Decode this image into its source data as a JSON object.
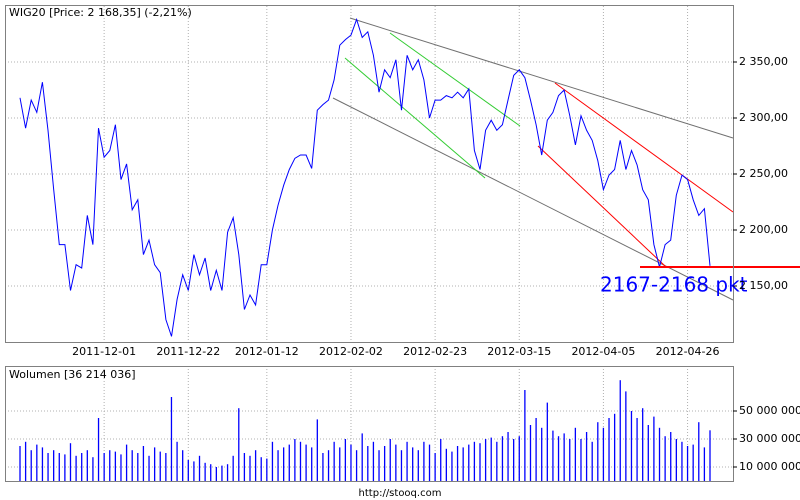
{
  "chart_data": [
    {
      "type": "line",
      "title": "WIG20 [Price: 2 168,35] (-2,21%)",
      "color": "#0000ff",
      "grid": true,
      "categories": [
        null,
        null,
        null,
        null,
        null,
        null,
        null,
        null,
        null,
        null,
        null,
        null,
        null,
        null,
        null,
        "2011-12-01",
        null,
        null,
        null,
        null,
        null,
        null,
        null,
        null,
        null,
        null,
        null,
        null,
        null,
        null,
        "2011-12-22",
        null,
        null,
        null,
        null,
        null,
        null,
        null,
        null,
        null,
        null,
        null,
        null,
        null,
        "2012-01-12",
        null,
        null,
        null,
        null,
        null,
        null,
        null,
        null,
        null,
        null,
        null,
        null,
        null,
        null,
        "2012-02-02",
        null,
        null,
        null,
        null,
        null,
        null,
        null,
        null,
        null,
        null,
        null,
        null,
        null,
        null,
        "2012-02-23",
        null,
        null,
        null,
        null,
        null,
        null,
        null,
        null,
        null,
        null,
        null,
        null,
        null,
        null,
        "2012-03-15",
        null,
        null,
        null,
        null,
        null,
        null,
        null,
        null,
        null,
        null,
        null,
        null,
        null,
        null,
        "2012-04-05",
        null,
        null,
        null,
        null,
        null,
        null,
        null,
        null,
        null,
        null,
        null,
        null,
        null,
        null,
        "2012-04-26",
        null,
        null,
        null,
        null
      ],
      "values": [
        2318,
        2291,
        2316,
        2305,
        2332,
        2289,
        2236,
        2187,
        2187,
        2146,
        2169,
        2166,
        2213,
        2187,
        2291,
        2265,
        2271,
        2294,
        2245,
        2259,
        2218,
        2227,
        2178,
        2191,
        2169,
        2162,
        2120,
        2105,
        2138,
        2160,
        2146,
        2178,
        2160,
        2175,
        2146,
        2164,
        2146,
        2198,
        2211,
        2178,
        2129,
        2142,
        2133,
        2169,
        2169,
        2200,
        2222,
        2240,
        2254,
        2264,
        2267,
        2267,
        2255,
        2307,
        2312,
        2316,
        2334,
        2365,
        2370,
        2374,
        2388,
        2372,
        2377,
        2356,
        2323,
        2343,
        2336,
        2352,
        2307,
        2356,
        2343,
        2352,
        2334,
        2300,
        2316,
        2316,
        2320,
        2318,
        2323,
        2318,
        2326,
        2271,
        2254,
        2289,
        2298,
        2289,
        2294,
        2316,
        2338,
        2343,
        2336,
        2316,
        2294,
        2267,
        2298,
        2305,
        2320,
        2325,
        2302,
        2276,
        2302,
        2289,
        2280,
        2262,
        2236,
        2249,
        2254,
        2280,
        2254,
        2271,
        2258,
        2236,
        2227,
        2187,
        2167,
        2187,
        2191,
        2231,
        2249,
        2245,
        2227,
        2213,
        2219,
        2168
      ],
      "ylim": [
        2100,
        2400
      ],
      "yticks": [
        {
          "value": 2150,
          "label": "2 150,00"
        },
        {
          "value": 2200,
          "label": "2 200,00"
        },
        {
          "value": 2250,
          "label": "2 250,00"
        },
        {
          "value": 2300,
          "label": "2 300,00"
        },
        {
          "value": 2350,
          "label": "2 350,00"
        }
      ],
      "annotation": "2167-2168 pkt"
    },
    {
      "type": "bar",
      "title": "Wolumen [36 214 036]",
      "color": "#0000ff",
      "values": [
        25000000,
        28000000,
        22000000,
        26000000,
        24000000,
        20000000,
        22000000,
        20000000,
        19000000,
        27000000,
        18000000,
        20000000,
        22000000,
        17000000,
        45000000,
        20000000,
        22000000,
        21000000,
        19000000,
        26000000,
        22000000,
        20000000,
        25000000,
        18000000,
        24000000,
        21000000,
        20000000,
        60000000,
        28000000,
        22000000,
        15000000,
        14000000,
        18000000,
        13000000,
        12000000,
        10000000,
        11000000,
        12000000,
        18000000,
        52000000,
        20000000,
        18000000,
        22000000,
        17000000,
        16000000,
        28000000,
        22000000,
        24000000,
        26000000,
        30000000,
        28000000,
        26000000,
        24000000,
        44000000,
        20000000,
        22000000,
        28000000,
        24000000,
        30000000,
        26000000,
        22000000,
        34000000,
        25000000,
        28000000,
        22000000,
        25000000,
        30000000,
        26000000,
        22000000,
        28000000,
        24000000,
        22000000,
        28000000,
        26000000,
        20000000,
        30000000,
        23000000,
        21000000,
        25000000,
        24000000,
        26000000,
        28000000,
        27000000,
        30000000,
        31000000,
        28000000,
        32000000,
        35000000,
        30000000,
        32000000,
        65000000,
        40000000,
        45000000,
        38000000,
        56000000,
        36000000,
        32000000,
        34000000,
        30000000,
        38000000,
        30000000,
        35000000,
        28000000,
        42000000,
        38000000,
        45000000,
        48000000,
        72000000,
        64000000,
        50000000,
        45000000,
        52000000,
        40000000,
        46000000,
        38000000,
        32000000,
        35000000,
        30000000,
        28000000,
        25000000,
        26000000,
        42000000,
        24000000,
        36214036
      ],
      "ylim": [
        0,
        80000000
      ],
      "yticks": [
        {
          "value": 10000000,
          "label": "10 000 000"
        },
        {
          "value": 30000000,
          "label": "30 000 000"
        },
        {
          "value": 50000000,
          "label": "50 000 000"
        }
      ]
    }
  ],
  "footer": "http://stooq.com"
}
